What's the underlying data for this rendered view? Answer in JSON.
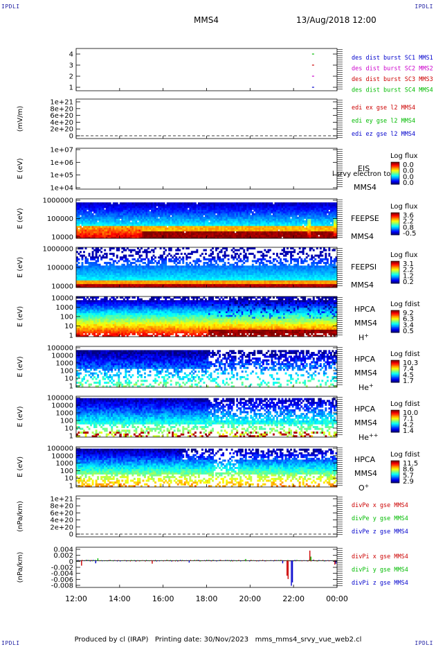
{
  "corner_label": "IPDLI",
  "header": {
    "spacecraft": "MMS4",
    "datetime": "13/Aug/2018 12:00"
  },
  "footer": "Produced by cl (IRAP)   Printing date: 30/Nov/2023   mms_mms4_srvy_vue_web2.cl",
  "chart_data": {
    "type": "heatmap",
    "x_axis": {
      "tick_labels": [
        "12:00",
        "14:00",
        "16:00",
        "18:00",
        "20:00",
        "22:00",
        "00:00"
      ],
      "range_hours": [
        12,
        24
      ]
    },
    "panels": [
      {
        "id": "burst",
        "kind": "ticks",
        "ylabel": "",
        "yticks": [
          "4",
          "3",
          "2",
          "1"
        ],
        "legend": [
          {
            "text": "des dist burst SC1 MMS1",
            "color": "#0000cc"
          },
          {
            "text": "des dist burst SC2 MMS2",
            "color": "#cc00cc"
          },
          {
            "text": "des dist burst SC3 MMS3",
            "color": "#cc0000"
          },
          {
            "text": "des dist burst SC4 MMS4",
            "color": "#00bb00"
          }
        ],
        "marks": [
          {
            "sc": 4,
            "t": 22.85,
            "color": "#00bb00"
          },
          {
            "sc": 3,
            "t": 22.85,
            "color": "#cc0000"
          },
          {
            "sc": 2,
            "t": 22.85,
            "color": "#cc00cc"
          },
          {
            "sc": 1,
            "t": 22.85,
            "color": "#0000cc"
          }
        ]
      },
      {
        "id": "edi",
        "kind": "lines",
        "ylabel": "(mV/m)",
        "yticks": [
          "1e+21",
          "8e+20",
          "6e+20",
          "4e+20",
          "2e+20",
          "0"
        ],
        "legend": [
          {
            "text": "edi ex gse l2 MMS4",
            "color": "#cc0000"
          },
          {
            "text": "edi ey gse l2 MMS4",
            "color": "#00bb00"
          },
          {
            "text": "edi ez gse l2 MMS4",
            "color": "#0000cc"
          }
        ]
      },
      {
        "id": "eis",
        "kind": "spectro",
        "ylabel": "E (eV)",
        "yticks": [
          "1e+07",
          "1e+06",
          "1e+05",
          "1e+04"
        ],
        "instrument": [
          "EIS",
          "MMS4"
        ],
        "overlay": "l srvy electron to",
        "cbar_title": "Log flux",
        "cbar_ticks": [
          "0.0",
          "0.0",
          "0.0",
          "0.0"
        ],
        "profile": "empty"
      },
      {
        "id": "feepse",
        "kind": "spectro",
        "ylabel": "E (eV)",
        "yticks": [
          "1000000",
          "100000",
          "10000"
        ],
        "instrument": [
          "FEEPSE",
          "MMS4"
        ],
        "cbar_title": "Log flux",
        "cbar_ticks": [
          "3.6",
          "2.2",
          "0.8",
          "-0.5"
        ],
        "profile": "feepse"
      },
      {
        "id": "feepsi",
        "kind": "spectro",
        "ylabel": "E (eV)",
        "yticks": [
          "1000000",
          "100000",
          "10000"
        ],
        "instrument": [
          "FEEPSI",
          "MMS4"
        ],
        "cbar_title": "Log flux",
        "cbar_ticks": [
          "3.1",
          "2.2",
          "1.2",
          "0.2"
        ],
        "profile": "feepsi"
      },
      {
        "id": "hpca_h",
        "kind": "spectro",
        "ylabel": "E (eV)",
        "yticks": [
          "10000",
          "1000",
          "100",
          "10",
          "1"
        ],
        "instrument": [
          "HPCA",
          "MMS4"
        ],
        "species": "H",
        "species_sup": "+",
        "cbar_title": "Log fdist",
        "cbar_ticks": [
          "9.2",
          "6.3",
          "3.4",
          "0.5"
        ],
        "profile": "hpca_h"
      },
      {
        "id": "hpca_he",
        "kind": "spectro",
        "ylabel": "E (eV)",
        "yticks": [
          "100000",
          "10000",
          "1000",
          "100",
          "10",
          "1"
        ],
        "instrument": [
          "HPCA",
          "MMS4"
        ],
        "species": "He",
        "species_sup": "+",
        "cbar_title": "Log fdist",
        "cbar_ticks": [
          "10.3",
          "7.4",
          "4.5",
          "1.7"
        ],
        "profile": "hpca_he"
      },
      {
        "id": "hpca_hepp",
        "kind": "spectro",
        "ylabel": "E (eV)",
        "yticks": [
          "100000",
          "10000",
          "1000",
          "100",
          "10",
          "1"
        ],
        "instrument": [
          "HPCA",
          "MMS4"
        ],
        "species": "He",
        "species_sup": "++",
        "cbar_title": "Log fdist",
        "cbar_ticks": [
          "10.0",
          "7.1",
          "4.2",
          "1.4"
        ],
        "profile": "hpca_hepp"
      },
      {
        "id": "hpca_o",
        "kind": "spectro",
        "ylabel": "E (eV)",
        "yticks": [
          "100000",
          "10000",
          "1000",
          "100",
          "10",
          "1"
        ],
        "instrument": [
          "HPCA",
          "MMS4"
        ],
        "species": "O",
        "species_sup": "+",
        "cbar_title": "Log fdist",
        "cbar_ticks": [
          "11.5",
          "8.6",
          "5.7",
          "2.9"
        ],
        "profile": "hpca_o"
      },
      {
        "id": "divpe",
        "kind": "lines",
        "ylabel": "(nPa/km)",
        "yticks": [
          "1e+21",
          "8e+20",
          "6e+20",
          "4e+20",
          "2e+20",
          "0"
        ],
        "legend": [
          {
            "text": "divPe x gse MMS4",
            "color": "#cc0000"
          },
          {
            "text": "divPe y gse MMS4",
            "color": "#00bb00"
          },
          {
            "text": "divPe z gse MMS4",
            "color": "#0000cc"
          }
        ]
      },
      {
        "id": "divpi",
        "kind": "timeseries",
        "ylabel": "(nPa/km)",
        "yticks": [
          "0.004",
          "0.002",
          "0",
          "-0.002",
          "-0.004",
          "-0.006",
          "-0.008"
        ],
        "ylim": [
          -0.008,
          0.004
        ],
        "legend": [
          {
            "text": "divPi x gse MMS4",
            "color": "#cc0000"
          },
          {
            "text": "divPi y gse MMS4",
            "color": "#00bb00"
          },
          {
            "text": "divPi z gse MMS4",
            "color": "#0000cc"
          }
        ],
        "spikes": [
          {
            "t": 12.25,
            "v": -0.0015,
            "color": "#cc0000"
          },
          {
            "t": 12.9,
            "v": -0.0008,
            "color": "#0000cc"
          },
          {
            "t": 13.0,
            "v": 0.0007,
            "color": "#00bb00"
          },
          {
            "t": 15.5,
            "v": -0.0009,
            "color": "#cc0000"
          },
          {
            "t": 17.2,
            "v": -0.0006,
            "color": "#0000cc"
          },
          {
            "t": 19.8,
            "v": 0.0005,
            "color": "#00bb00"
          },
          {
            "t": 21.5,
            "v": -0.0008,
            "color": "#0000cc"
          },
          {
            "t": 21.7,
            "v": -0.0045,
            "color": "#cc0000"
          },
          {
            "t": 21.75,
            "v": -0.0055,
            "color": "#cc0000"
          },
          {
            "t": 21.9,
            "v": -0.0075,
            "color": "#0000cc"
          },
          {
            "t": 21.95,
            "v": -0.0065,
            "color": "#0000cc"
          },
          {
            "t": 22.75,
            "v": 0.003,
            "color": "#cc0000"
          },
          {
            "t": 22.8,
            "v": 0.0012,
            "color": "#00bb00"
          },
          {
            "t": 23.9,
            "v": -0.0012,
            "color": "#cc0000"
          },
          {
            "t": 23.95,
            "v": -0.0009,
            "color": "#0000cc"
          }
        ]
      }
    ]
  }
}
